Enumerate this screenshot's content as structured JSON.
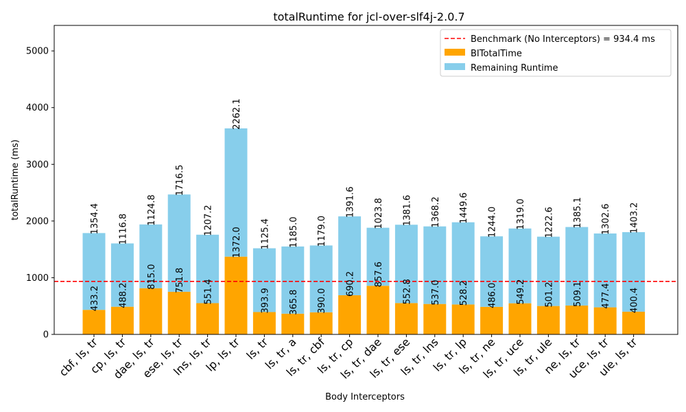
{
  "chart_data": {
    "type": "bar",
    "title": "totalRuntime for jcl-over-slf4j-2.0.7",
    "xlabel": "Body Interceptors",
    "ylabel": "totalRuntime (ms)",
    "ylim": [
      0,
      5450
    ],
    "yticks": [
      0,
      1000,
      2000,
      3000,
      4000,
      5000
    ],
    "stacked": true,
    "categories": [
      "cbf, ls, tr",
      "cp, ls, tr",
      "dae, ls, tr",
      "ese, ls, tr",
      "lns, ls, tr",
      "lp, ls, tr",
      "ls, tr",
      "ls, tr, a",
      "ls, tr, cbf",
      "ls, tr, cp",
      "ls, tr, dae",
      "ls, tr, ese",
      "ls, tr, lns",
      "ls, tr, lp",
      "ls, tr, ne",
      "ls, tr, uce",
      "ls, tr, ule",
      "ne, ls, tr",
      "uce, ls, tr",
      "ule, ls, tr"
    ],
    "series": [
      {
        "name": "BITotalTime",
        "color": "#ffa500",
        "values": [
          433.2,
          488.2,
          815.0,
          751.8,
          551.4,
          1372.0,
          393.9,
          365.8,
          390.0,
          690.2,
          857.6,
          552.8,
          537.0,
          528.2,
          486.0,
          549.2,
          501.2,
          509.1,
          477.4,
          400.4
        ],
        "labels": [
          "433.2",
          "488.2",
          "815.0",
          "751.8",
          "551.4",
          "1372.0",
          "393.9",
          "365.8",
          "390.0",
          "690.2",
          "857.6",
          "552.8",
          "537.0",
          "528.2",
          "486.0",
          "549.2",
          "501.2",
          "509.1",
          "477.4",
          "400.4"
        ]
      },
      {
        "name": "Remaining Runtime",
        "color": "#87ceeb",
        "values": [
          1354.4,
          1116.8,
          1124.8,
          1716.5,
          1207.2,
          2262.1,
          1125.4,
          1185.0,
          1179.0,
          1391.6,
          1023.8,
          1381.6,
          1368.2,
          1449.6,
          1244.0,
          1319.0,
          1222.6,
          1385.1,
          1302.6,
          1403.2
        ],
        "labels": [
          "1354.4",
          "1116.8",
          "1124.8",
          "1716.5",
          "1207.2",
          "2262.1",
          "1125.4",
          "1185.0",
          "1179.0",
          "1391.6",
          "1023.8",
          "1381.6",
          "1368.2",
          "1449.6",
          "1244.0",
          "1319.0",
          "1222.6",
          "1385.1",
          "1302.6",
          "1403.2"
        ]
      }
    ],
    "benchmark": {
      "value": 934.4,
      "label": "Benchmark (No Interceptors) = 934.4 ms",
      "color": "#ff0000"
    },
    "legend": {
      "placement": "top-right",
      "entries": [
        "Benchmark (No Interceptors) = 934.4 ms",
        "BITotalTime",
        "Remaining Runtime"
      ]
    },
    "grid": false
  }
}
